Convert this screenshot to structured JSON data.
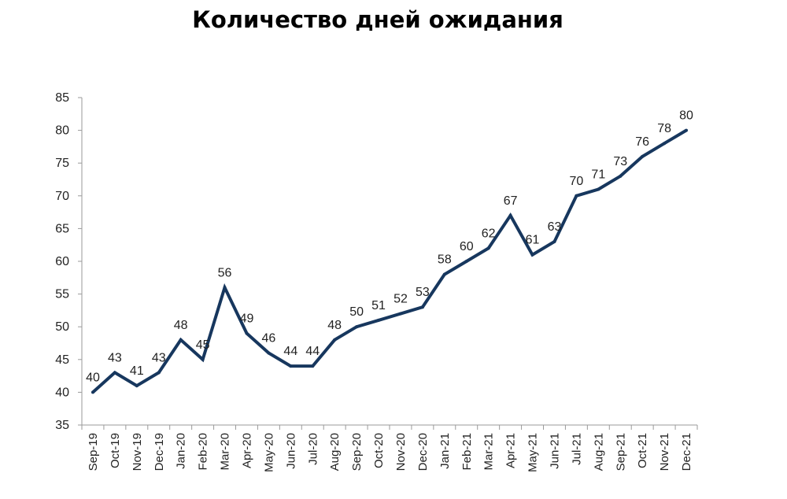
{
  "chart_data": {
    "type": "line",
    "title": "Количество дней ожидания",
    "xlabel": "",
    "ylabel": "",
    "ylim": [
      35,
      85
    ],
    "yticks": [
      35,
      40,
      45,
      50,
      55,
      60,
      65,
      70,
      75,
      80,
      85
    ],
    "grid": false,
    "legend": "none",
    "categories": [
      "Sep-19",
      "Oct-19",
      "Nov-19",
      "Dec-19",
      "Jan-20",
      "Feb-20",
      "Mar-20",
      "Apr-20",
      "May-20",
      "Jun-20",
      "Jul-20",
      "Aug-20",
      "Sep-20",
      "Oct-20",
      "Nov-20",
      "Dec-20",
      "Jan-21",
      "Feb-21",
      "Mar-21",
      "Apr-21",
      "May-21",
      "Jun-21",
      "Jul-21",
      "Aug-21",
      "Sep-21",
      "Oct-21",
      "Nov-21",
      "Dec-21"
    ],
    "series": [
      {
        "name": "Количество дней ожидания",
        "color": "#17375e",
        "values": [
          40,
          43,
          41,
          43,
          48,
          45,
          56,
          49,
          46,
          44,
          44,
          48,
          50,
          51,
          52,
          53,
          58,
          60,
          62,
          67,
          61,
          63,
          70,
          71,
          73,
          76,
          78,
          80
        ]
      }
    ]
  }
}
